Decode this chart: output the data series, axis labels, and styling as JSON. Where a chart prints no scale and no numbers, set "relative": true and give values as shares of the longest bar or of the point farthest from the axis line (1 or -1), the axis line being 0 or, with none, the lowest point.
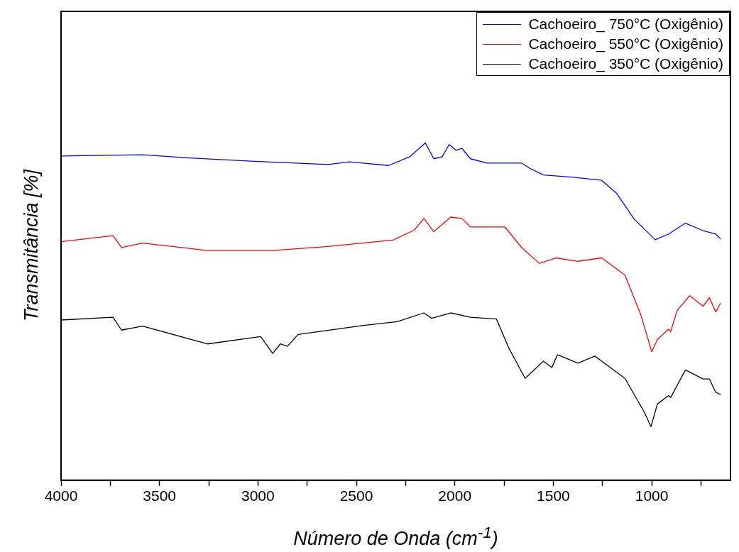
{
  "chart_data": {
    "type": "line",
    "relative": true,
    "xlabel": "Número de Onda (cm$^{-1}$)",
    "ylabel": "Transmitância [%]",
    "xlim": [
      4000,
      600
    ],
    "xticks": [
      4000,
      {
        "value": 3750,
        "label": null
      },
      3500,
      {
        "value": 3250,
        "label": null
      },
      3000,
      {
        "value": 2750,
        "label": null
      },
      2500,
      {
        "value": 2250,
        "label": null
      },
      2000,
      {
        "value": 1750,
        "label": null
      },
      1500,
      {
        "value": 1250,
        "label": null
      },
      1000,
      {
        "value": 750,
        "label": null
      }
    ],
    "grid": false,
    "legend": "top right",
    "marker": "none",
    "line_style": "solid",
    "series": [
      {
        "name": "Cachoeiro_ 750°C (Oxigênio)",
        "color": "#0000ff",
        "x": [
          4000,
          3586,
          3364,
          3036,
          2643,
          2536,
          2336,
          2229,
          2150,
          2107,
          2064,
          2029,
          1993,
          1964,
          1921,
          1836,
          1661,
          1614,
          1550,
          1396,
          1254,
          1179,
          1089,
          982,
          914,
          829,
          739,
          675,
          650
        ],
        "values": [
          0.961,
          0.965,
          0.956,
          0.946,
          0.936,
          0.944,
          0.933,
          0.959,
          1.0,
          0.953,
          0.959,
          0.995,
          0.978,
          0.984,
          0.953,
          0.94,
          0.94,
          0.923,
          0.905,
          0.898,
          0.889,
          0.851,
          0.774,
          0.713,
          0.73,
          0.762,
          0.74,
          0.73,
          0.715
        ]
      },
      {
        "name": "Cachoeiro_ 550°C (Oxigênio)",
        "color": "#ff0000",
        "x": [
          4000,
          3736,
          3693,
          3586,
          3257,
          2929,
          2643,
          2314,
          2207,
          2157,
          2107,
          2021,
          1964,
          1921,
          1746,
          1661,
          1571,
          1486,
          1375,
          1254,
          1136,
          1057,
          1000,
          971,
          914,
          904,
          871,
          807,
          739,
          707,
          675,
          650
        ],
        "values": [
          0.707,
          0.725,
          0.69,
          0.703,
          0.681,
          0.681,
          0.693,
          0.712,
          0.741,
          0.776,
          0.737,
          0.78,
          0.776,
          0.751,
          0.751,
          0.69,
          0.643,
          0.659,
          0.649,
          0.659,
          0.608,
          0.493,
          0.381,
          0.417,
          0.448,
          0.44,
          0.503,
          0.547,
          0.516,
          0.541,
          0.499,
          0.525
        ]
      },
      {
        "name": "Cachoeiro_ 350°C (Oxigênio)",
        "color": "#000000",
        "x": [
          4000,
          3736,
          3693,
          3586,
          3257,
          2986,
          2925,
          2886,
          2850,
          2796,
          2489,
          2293,
          2157,
          2118,
          2021,
          1921,
          1789,
          1725,
          1643,
          1550,
          1507,
          1479,
          1375,
          1289,
          1136,
          1036,
          1004,
          971,
          914,
          904,
          829,
          739,
          707,
          675,
          650
        ],
        "values": [
          0.475,
          0.483,
          0.445,
          0.457,
          0.404,
          0.426,
          0.376,
          0.404,
          0.397,
          0.432,
          0.457,
          0.47,
          0.496,
          0.48,
          0.496,
          0.483,
          0.478,
          0.391,
          0.302,
          0.353,
          0.334,
          0.372,
          0.347,
          0.368,
          0.302,
          0.2,
          0.159,
          0.226,
          0.251,
          0.245,
          0.327,
          0.3,
          0.3,
          0.261,
          0.254
        ]
      }
    ]
  }
}
